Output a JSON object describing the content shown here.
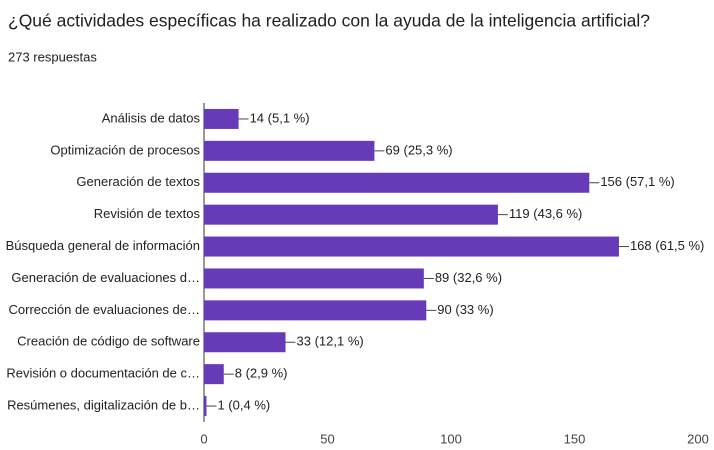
{
  "chart_data": {
    "type": "barh",
    "title": "¿Qué actividades específicas ha realizado con la ayuda de la inteligencia artificial?",
    "subtitle": "273 respuestas",
    "categories": [
      "Análisis de datos",
      "Optimización de procesos",
      "Generación de textos",
      "Revisión de textos",
      "Búsqueda general de información",
      "Generación de evaluaciones d…",
      "Corrección de evaluaciones de…",
      "Creación de código de software",
      "Revisión o documentación de c…",
      "Resúmenes, digitalización de b…"
    ],
    "values": [
      14,
      69,
      156,
      119,
      168,
      89,
      90,
      33,
      8,
      1
    ],
    "value_labels": [
      "14 (5,1 %)",
      "69 (25,3 %)",
      "156 (57,1 %)",
      "119 (43,6 %)",
      "168 (61,5 %)",
      "89 (32,6 %)",
      "90 (33 %)",
      "33 (12,1 %)",
      "8 (2,9 %)",
      "1 (0,4 %)"
    ],
    "color": "#673ab7",
    "xlim": [
      0,
      200
    ],
    "xticks": [
      0,
      50,
      100,
      150,
      200
    ],
    "grid": false
  }
}
